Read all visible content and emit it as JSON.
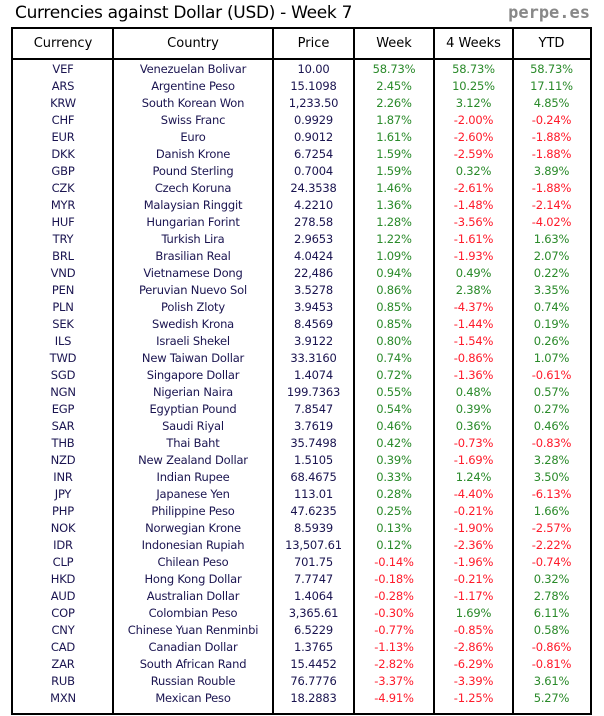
{
  "title": "Currencies against Dollar (USD) - Week 7",
  "brand": "perpe.es",
  "colors": {
    "positive": "#2a8a2a",
    "negative": "#ff1a2a",
    "text": "#1a1450"
  },
  "headers": [
    "Currency",
    "Country",
    "Price",
    "Week",
    "4 Weeks",
    "YTD"
  ],
  "rows": [
    [
      "VEF",
      "Venezuelan Bolivar",
      "10.00",
      "58.73%",
      "58.73%",
      "58.73%"
    ],
    [
      "ARS",
      "Argentine Peso",
      "15.1098",
      "2.45%",
      "10.25%",
      "17.11%"
    ],
    [
      "KRW",
      "South Korean Won",
      "1,233.50",
      "2.26%",
      "3.12%",
      "4.85%"
    ],
    [
      "CHF",
      "Swiss Franc",
      "0.9929",
      "1.87%",
      "-2.00%",
      "-0.24%"
    ],
    [
      "EUR",
      "Euro",
      "0.9012",
      "1.61%",
      "-2.60%",
      "-1.88%"
    ],
    [
      "DKK",
      "Danish Krone",
      "6.7254",
      "1.59%",
      "-2.59%",
      "-1.88%"
    ],
    [
      "GBP",
      "Pound Sterling",
      "0.7004",
      "1.59%",
      "0.32%",
      "3.89%"
    ],
    [
      "CZK",
      "Czech Koruna",
      "24.3538",
      "1.46%",
      "-2.61%",
      "-1.88%"
    ],
    [
      "MYR",
      "Malaysian Ringgit",
      "4.2210",
      "1.36%",
      "-1.48%",
      "-2.14%"
    ],
    [
      "HUF",
      "Hungarian Forint",
      "278.58",
      "1.28%",
      "-3.56%",
      "-4.02%"
    ],
    [
      "TRY",
      "Turkish Lira",
      "2.9653",
      "1.22%",
      "-1.61%",
      "1.63%"
    ],
    [
      "BRL",
      "Brasilian Real",
      "4.0424",
      "1.09%",
      "-1.93%",
      "2.07%"
    ],
    [
      "VND",
      "Vietnamese Dong",
      "22,486",
      "0.94%",
      "0.49%",
      "0.22%"
    ],
    [
      "PEN",
      "Peruvian Nuevo Sol",
      "3.5278",
      "0.86%",
      "2.38%",
      "3.35%"
    ],
    [
      "PLN",
      "Polish Zloty",
      "3.9453",
      "0.85%",
      "-4.37%",
      "0.74%"
    ],
    [
      "SEK",
      "Swedish Krona",
      "8.4569",
      "0.85%",
      "-1.44%",
      "0.19%"
    ],
    [
      "ILS",
      "Israeli Shekel",
      "3.9122",
      "0.80%",
      "-1.54%",
      "0.26%"
    ],
    [
      "TWD",
      "New Taiwan Dollar",
      "33.3160",
      "0.74%",
      "-0.86%",
      "1.07%"
    ],
    [
      "SGD",
      "Singapore Dollar",
      "1.4074",
      "0.72%",
      "-1.36%",
      "-0.61%"
    ],
    [
      "NGN",
      "Nigerian Naira",
      "199.7363",
      "0.55%",
      "0.48%",
      "0.57%"
    ],
    [
      "EGP",
      "Egyptian Pound",
      "7.8547",
      "0.54%",
      "0.39%",
      "0.27%"
    ],
    [
      "SAR",
      "Saudi Riyal",
      "3.7619",
      "0.46%",
      "0.36%",
      "0.46%"
    ],
    [
      "THB",
      "Thai Baht",
      "35.7498",
      "0.42%",
      "-0.73%",
      "-0.83%"
    ],
    [
      "NZD",
      "New Zealand Dollar",
      "1.5105",
      "0.39%",
      "-1.69%",
      "3.28%"
    ],
    [
      "INR",
      "Indian Rupee",
      "68.4675",
      "0.33%",
      "1.24%",
      "3.50%"
    ],
    [
      "JPY",
      "Japanese Yen",
      "113.01",
      "0.28%",
      "-4.40%",
      "-6.13%"
    ],
    [
      "PHP",
      "Philippine Peso",
      "47.6235",
      "0.25%",
      "-0.21%",
      "1.66%"
    ],
    [
      "NOK",
      "Norwegian Krone",
      "8.5939",
      "0.13%",
      "-1.90%",
      "-2.57%"
    ],
    [
      "IDR",
      "Indonesian Rupiah",
      "13,507.61",
      "0.12%",
      "-2.36%",
      "-2.22%"
    ],
    [
      "CLP",
      "Chilean Peso",
      "701.75",
      "-0.14%",
      "-1.96%",
      "-0.74%"
    ],
    [
      "HKD",
      "Hong Kong Dollar",
      "7.7747",
      "-0.18%",
      "-0.21%",
      "0.32%"
    ],
    [
      "AUD",
      "Australian Dollar",
      "1.4064",
      "-0.28%",
      "-1.17%",
      "2.78%"
    ],
    [
      "COP",
      "Colombian Peso",
      "3,365.61",
      "-0.30%",
      "1.69%",
      "6.11%"
    ],
    [
      "CNY",
      "Chinese Yuan Renminbi",
      "6.5229",
      "-0.77%",
      "-0.85%",
      "0.58%"
    ],
    [
      "CAD",
      "Canadian Dollar",
      "1.3765",
      "-1.13%",
      "-2.86%",
      "-0.86%"
    ],
    [
      "ZAR",
      "South African Rand",
      "15.4452",
      "-2.82%",
      "-6.29%",
      "-0.81%"
    ],
    [
      "RUB",
      "Russian Rouble",
      "76.7776",
      "-3.37%",
      "-3.39%",
      "3.61%"
    ],
    [
      "MXN",
      "Mexican Peso",
      "18.2883",
      "-4.91%",
      "-1.25%",
      "5.27%"
    ]
  ]
}
